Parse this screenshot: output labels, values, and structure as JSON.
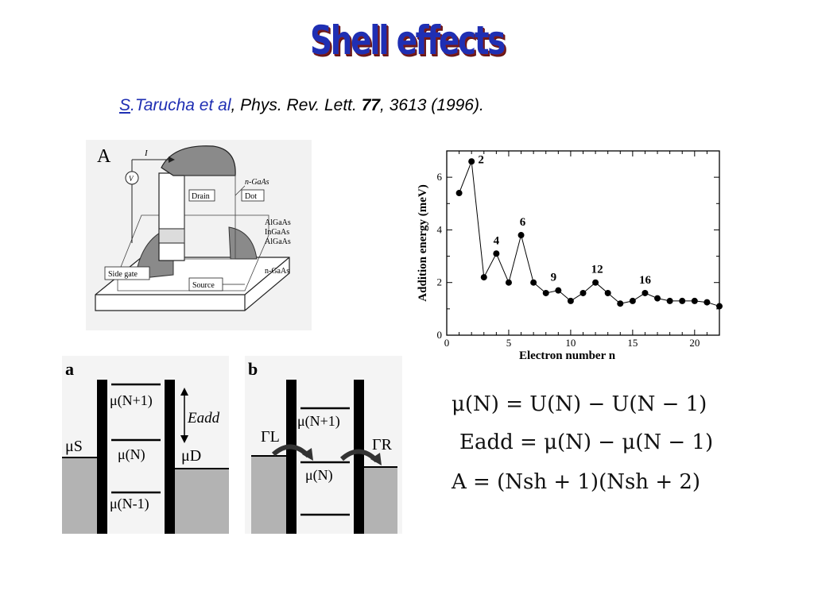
{
  "title": "Shell effects",
  "reference": {
    "s_link": "S",
    "author_rest": ".Tarucha et al",
    "sep1": ", ",
    "journal": "Phys. Rev. Lett. ",
    "volume": "77",
    "rest": ", 3613 (1996)."
  },
  "device": {
    "panel_letter": "A",
    "current_label": "I",
    "voltmeter_label": "V",
    "labels": {
      "ngaas_top": "n-GaAs",
      "drain": "Drain",
      "dot": "Dot",
      "algaas1": "AlGaAs",
      "ingaas": "InGaAs",
      "algaas2": "AlGaAs",
      "side_gate": "Side gate",
      "source": "Source",
      "ngaas_bottom": "n-GaAs"
    }
  },
  "chart_data": {
    "type": "line",
    "xlabel": "Electron number  n",
    "ylabel": "Addition energy  (meV)",
    "xlim": [
      0,
      22
    ],
    "ylim": [
      0,
      7
    ],
    "xticks": [
      0,
      5,
      10,
      15,
      20
    ],
    "yticks": [
      0,
      2,
      4,
      6
    ],
    "series": [
      {
        "x": [
          1,
          2,
          3,
          4,
          5,
          6,
          7,
          8,
          9,
          10,
          11,
          12,
          13,
          14,
          15,
          16,
          17,
          18,
          19,
          20,
          21,
          22
        ],
        "values": [
          5.4,
          6.6,
          2.2,
          3.1,
          2.0,
          3.8,
          2.0,
          1.6,
          1.7,
          1.3,
          1.6,
          2.0,
          1.6,
          1.2,
          1.3,
          1.6,
          1.4,
          1.3,
          1.3,
          1.3,
          1.25,
          1.1
        ]
      }
    ],
    "annotations": [
      {
        "n": 2,
        "text": "2"
      },
      {
        "n": 4,
        "text": "4"
      },
      {
        "n": 6,
        "text": "6"
      },
      {
        "n": 9,
        "text": "9"
      },
      {
        "n": 12,
        "text": "12"
      },
      {
        "n": 16,
        "text": "16"
      }
    ]
  },
  "diagram_a": {
    "letter": "a",
    "mu_np1": "μ(N+1)",
    "mu_n": "μ(N)",
    "mu_nm1": "μ(N-1)",
    "mu_s": "μS",
    "mu_d": "μD",
    "e_add": "Eadd"
  },
  "diagram_b": {
    "letter": "b",
    "mu_np1": "μ(N+1)",
    "mu_n": "μ(N)",
    "gamma_l": "ΓL",
    "gamma_r": "ΓR"
  },
  "formulas": {
    "f1": "μ(N) = U(N) − U(N − 1)",
    "f2": "Eadd = μ(N) − μ(N − 1)",
    "f3": "A = (Nsh + 1)(Nsh + 2)"
  }
}
